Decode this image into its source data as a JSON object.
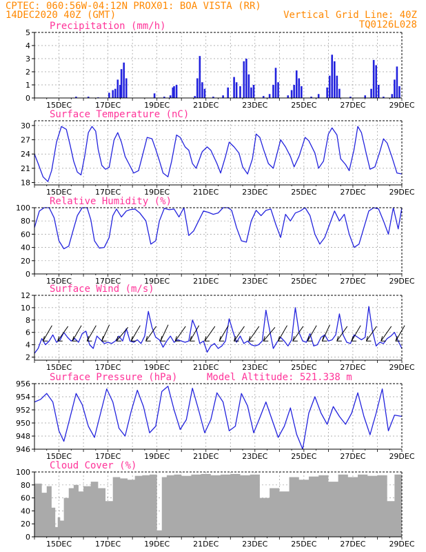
{
  "header": {
    "line1": "CPTEC:    060:56W-04:12N   PROX01: BOA VISTA (RR)",
    "line2_left": "14DEC2020 40Z (GMT)",
    "line2_right": "Vertical Grid Line: 40Z",
    "line3_right": "TQ0126L028"
  },
  "colors": {
    "header": "#ff8800",
    "title": "#ff3399",
    "line": "#2222dd",
    "cloud": "#aaaaaa",
    "grid": "#999999"
  },
  "x_ticks": [
    "15DEC",
    "17DEC",
    "19DEC",
    "21DEC",
    "23DEC",
    "25DEC",
    "27DEC",
    "29DEC"
  ],
  "x_tick_days": [
    1,
    3,
    5,
    7,
    9,
    11,
    13,
    15
  ],
  "chart_data": [
    {
      "id": "precip",
      "type": "bar",
      "title": "Precipitation  (mm/h)",
      "ylim": [
        0,
        5
      ],
      "yticks": [
        0,
        1,
        2,
        3,
        4,
        5
      ],
      "x_days": [
        1.7,
        2.2,
        2.6,
        3.05,
        3.2,
        3.3,
        3.4,
        3.5,
        3.55,
        3.65,
        3.75,
        4.9,
        5.3,
        5.55,
        5.65,
        5.7,
        5.8,
        6.55,
        6.65,
        6.75,
        6.85,
        6.95,
        7.3,
        7.7,
        7.9,
        8.15,
        8.25,
        8.4,
        8.55,
        8.65,
        8.75,
        8.85,
        8.95,
        9.35,
        9.6,
        9.75,
        9.85,
        9.95,
        10.35,
        10.5,
        10.6,
        10.7,
        10.8,
        10.9,
        11.3,
        11.6,
        11.95,
        12.05,
        12.15,
        12.25,
        12.35,
        12.45,
        12.9,
        13.5,
        13.75,
        13.85,
        13.95,
        14.05,
        14.25,
        14.6,
        14.7,
        14.8,
        14.9
      ],
      "values": [
        0.1,
        0.1,
        0.05,
        0.4,
        0.6,
        0.7,
        1.4,
        1.0,
        2.2,
        2.7,
        1.5,
        0.35,
        0.1,
        0.2,
        0.8,
        0.9,
        1.0,
        0.15,
        1.5,
        3.2,
        1.2,
        0.7,
        0.1,
        0.2,
        0.8,
        1.6,
        1.2,
        0.9,
        2.8,
        3.0,
        1.8,
        0.8,
        1.0,
        0.15,
        0.3,
        1.0,
        2.3,
        1.2,
        0.2,
        0.6,
        1.0,
        2.1,
        1.5,
        0.9,
        0.1,
        0.3,
        0.8,
        1.7,
        3.3,
        2.8,
        1.7,
        0.7,
        0.1,
        0.2,
        0.7,
        2.9,
        2.5,
        1.0,
        0.1,
        0.3,
        1.4,
        2.4,
        0.9
      ]
    },
    {
      "id": "temp",
      "type": "line",
      "title": "Surface Temperature (nC)",
      "ylim": [
        17.5,
        31
      ],
      "yticks": [
        18,
        21,
        24,
        27,
        30
      ],
      "x_days": [
        0,
        0.15,
        0.35,
        0.55,
        0.7,
        0.9,
        1.1,
        1.3,
        1.45,
        1.6,
        1.75,
        1.9,
        2.05,
        2.2,
        2.35,
        2.5,
        2.6,
        2.75,
        2.9,
        3.05,
        3.25,
        3.4,
        3.55,
        3.7,
        3.85,
        4.05,
        4.25,
        4.4,
        4.6,
        4.8,
        4.95,
        5.1,
        5.25,
        5.45,
        5.6,
        5.8,
        5.95,
        6.15,
        6.3,
        6.45,
        6.6,
        6.85,
        7.05,
        7.2,
        7.45,
        7.6,
        7.8,
        7.95,
        8.15,
        8.35,
        8.5,
        8.7,
        8.9,
        9.05,
        9.2,
        9.35,
        9.55,
        9.75,
        9.9,
        10.05,
        10.25,
        10.45,
        10.6,
        10.8,
        11.05,
        11.2,
        11.45,
        11.6,
        11.8,
        12.0,
        12.15,
        12.35,
        12.5,
        12.7,
        12.85,
        13.05,
        13.2,
        13.35,
        13.55,
        13.7,
        13.9,
        14.1,
        14.25,
        14.4,
        14.6,
        14.8,
        15.0
      ],
      "values": [
        24,
        22,
        19.2,
        18.2,
        20.5,
        26.5,
        29.8,
        29.2,
        26,
        22.5,
        20.2,
        19.6,
        23.5,
        28.5,
        29.8,
        28.8,
        25,
        21.6,
        20.8,
        21.2,
        27,
        28.5,
        26.5,
        23.5,
        22,
        20,
        20.5,
        23.5,
        27.5,
        27.2,
        25,
        22.6,
        20,
        19.2,
        22.5,
        28,
        27.5,
        25.5,
        24.8,
        22,
        21,
        24.5,
        25.5,
        24.8,
        22,
        20,
        23.5,
        26.5,
        25.5,
        24.2,
        21.3,
        19.8,
        23,
        28.2,
        27.5,
        25,
        22,
        21,
        24,
        27,
        25.5,
        23.5,
        21.3,
        23.5,
        27.5,
        26.8,
        24.2,
        21,
        22.5,
        28.2,
        29.5,
        28,
        23,
        21.8,
        20.5,
        25,
        29.8,
        28.5,
        24,
        20.8,
        21.3,
        24.5,
        27.2,
        26.3,
        23.3,
        20,
        19.8
      ]
    },
    {
      "id": "rh",
      "type": "line",
      "title": "Relative Humidity (%)",
      "ylim": [
        0,
        100
      ],
      "yticks": [
        0,
        20,
        40,
        60,
        80,
        100
      ],
      "x_days": [
        0,
        0.2,
        0.4,
        0.6,
        0.8,
        1.0,
        1.2,
        1.4,
        1.55,
        1.75,
        1.95,
        2.15,
        2.3,
        2.45,
        2.65,
        2.85,
        3.05,
        3.2,
        3.35,
        3.55,
        3.75,
        3.9,
        4.1,
        4.3,
        4.55,
        4.75,
        4.95,
        5.1,
        5.3,
        5.5,
        5.7,
        5.9,
        6.1,
        6.3,
        6.5,
        6.7,
        6.9,
        7.1,
        7.3,
        7.5,
        7.7,
        7.9,
        8.05,
        8.25,
        8.45,
        8.65,
        8.85,
        9.05,
        9.25,
        9.45,
        9.65,
        9.85,
        10.05,
        10.25,
        10.45,
        10.65,
        10.85,
        11.05,
        11.25,
        11.45,
        11.65,
        11.85,
        12.05,
        12.25,
        12.45,
        12.65,
        12.85,
        13.05,
        13.25,
        13.45,
        13.65,
        13.85,
        14.05,
        14.25,
        14.45,
        14.65,
        14.85,
        15.0
      ],
      "values": [
        70,
        95,
        100,
        100,
        85,
        50,
        38,
        42,
        62,
        88,
        100,
        100,
        82,
        50,
        39,
        40,
        55,
        88,
        98,
        86,
        95,
        97,
        98,
        92,
        80,
        45,
        50,
        80,
        99,
        97,
        98,
        86,
        100,
        58,
        65,
        80,
        95,
        93,
        90,
        92,
        100,
        100,
        96,
        70,
        50,
        48,
        80,
        96,
        88,
        96,
        98,
        75,
        55,
        90,
        80,
        92,
        95,
        100,
        88,
        60,
        45,
        55,
        75,
        95,
        80,
        90,
        60,
        40,
        45,
        70,
        95,
        100,
        98,
        80,
        60,
        100,
        68,
        100
      ]
    },
    {
      "id": "wind",
      "type": "line",
      "title": "Surface Wind (m/s)",
      "ylim": [
        1.5,
        12
      ],
      "yticks": [
        2,
        4,
        6,
        8,
        10,
        12
      ],
      "x_days": [
        0,
        0.15,
        0.3,
        0.45,
        0.6,
        0.75,
        0.9,
        1.05,
        1.2,
        1.35,
        1.5,
        1.65,
        1.8,
        1.95,
        2.1,
        2.25,
        2.4,
        2.55,
        2.7,
        2.85,
        3.0,
        3.15,
        3.3,
        3.45,
        3.6,
        3.75,
        3.9,
        4.05,
        4.2,
        4.35,
        4.5,
        4.65,
        4.8,
        4.95,
        5.1,
        5.25,
        5.4,
        5.55,
        5.7,
        5.85,
        6.0,
        6.15,
        6.3,
        6.45,
        6.6,
        6.75,
        6.9,
        7.05,
        7.2,
        7.35,
        7.5,
        7.65,
        7.8,
        7.95,
        8.1,
        8.25,
        8.4,
        8.55,
        8.7,
        8.85,
        9.0,
        9.15,
        9.3,
        9.45,
        9.6,
        9.75,
        9.9,
        10.05,
        10.2,
        10.35,
        10.5,
        10.65,
        10.8,
        10.95,
        11.1,
        11.25,
        11.4,
        11.55,
        11.7,
        11.85,
        12.0,
        12.15,
        12.3,
        12.45,
        12.6,
        12.75,
        12.9,
        13.05,
        13.2,
        13.35,
        13.5,
        13.65,
        13.8,
        13.95,
        14.1,
        14.25,
        14.4,
        14.55,
        14.7,
        14.85,
        15.0
      ],
      "values": [
        2.6,
        3.4,
        5.0,
        4.0,
        4.6,
        5.6,
        4.4,
        4.8,
        6.0,
        5.2,
        4.6,
        5.0,
        4.4,
        5.8,
        6.2,
        4.0,
        3.4,
        5.4,
        4.8,
        4.2,
        4.4,
        4.2,
        4.6,
        5.4,
        4.6,
        6.6,
        4.6,
        4.4,
        4.8,
        4.2,
        5.4,
        9.4,
        6.8,
        5.2,
        4.8,
        3.6,
        4.6,
        5.4,
        4.4,
        4.8,
        4.6,
        4.4,
        4.6,
        8.0,
        6.6,
        4.2,
        4.6,
        2.8,
        3.8,
        4.2,
        3.4,
        3.8,
        4.6,
        8.2,
        6.2,
        4.4,
        5.4,
        4.2,
        4.6,
        4.0,
        3.8,
        4.0,
        4.6,
        9.6,
        6.4,
        3.4,
        4.4,
        5.2,
        4.6,
        3.8,
        4.8,
        10.0,
        6.0,
        4.6,
        4.4,
        5.8,
        3.8,
        4.0,
        5.2,
        5.6,
        4.6,
        4.8,
        5.6,
        9.0,
        5.6,
        4.4,
        4.2,
        5.6,
        5.2,
        4.8,
        5.2,
        10.2,
        6.2,
        3.8,
        4.4,
        4.2,
        5.0,
        5.4,
        6.0,
        4.6,
        3.4
      ]
    },
    {
      "id": "pressure",
      "type": "line",
      "title": "Surface Pressure (hPa)",
      "annotation": "Model Altitude: 521.338  m",
      "ylim": [
        946,
        956
      ],
      "yticks": [
        946,
        948,
        950,
        952,
        954,
        956
      ],
      "x_days": [
        0,
        0.25,
        0.5,
        0.75,
        1.0,
        1.2,
        1.45,
        1.7,
        1.95,
        2.2,
        2.45,
        2.7,
        2.95,
        3.2,
        3.45,
        3.7,
        3.95,
        4.2,
        4.45,
        4.7,
        4.95,
        5.2,
        5.45,
        5.7,
        5.95,
        6.2,
        6.45,
        6.7,
        6.95,
        7.2,
        7.45,
        7.7,
        7.95,
        8.2,
        8.45,
        8.7,
        8.95,
        9.2,
        9.45,
        9.7,
        9.95,
        10.2,
        10.45,
        10.7,
        10.95,
        11.2,
        11.45,
        11.7,
        11.95,
        12.2,
        12.45,
        12.7,
        12.95,
        13.2,
        13.45,
        13.7,
        13.95,
        14.2,
        14.45,
        14.7,
        15.0
      ],
      "values": [
        953.2,
        953.6,
        954.5,
        953.2,
        948.8,
        947.2,
        950.8,
        954.5,
        952.8,
        949.5,
        947.8,
        951.5,
        955.2,
        953.2,
        949.2,
        948.0,
        951.8,
        955.0,
        952.5,
        948.5,
        949.5,
        954.8,
        955.6,
        952.0,
        949.0,
        950.5,
        955.3,
        952.0,
        948.5,
        950.5,
        954.6,
        953.2,
        948.8,
        949.5,
        954.5,
        952.6,
        948.5,
        950.8,
        953.2,
        950.5,
        947.8,
        949.5,
        952.3,
        948.3,
        946.0,
        951.5,
        954.0,
        951.5,
        949.8,
        952.5,
        951.0,
        949.8,
        951.5,
        954.6,
        951.0,
        948.2,
        951.5,
        955.2,
        948.8,
        951.2,
        951.0
      ]
    },
    {
      "id": "cloud",
      "type": "area",
      "title": "Cloud Cover (%)",
      "ylim": [
        0,
        100
      ],
      "yticks": [
        0,
        20,
        40,
        60,
        80,
        100
      ],
      "x_days": [
        0,
        0.3,
        0.5,
        0.7,
        0.85,
        0.95,
        1.05,
        1.2,
        1.4,
        1.6,
        1.8,
        2.0,
        2.3,
        2.6,
        2.9,
        3.2,
        3.5,
        3.8,
        4.1,
        4.4,
        4.7,
        5.0,
        5.2,
        5.4,
        5.7,
        6.0,
        6.4,
        6.8,
        7.2,
        7.6,
        8.0,
        8.4,
        8.8,
        9.2,
        9.6,
        10.0,
        10.4,
        10.8,
        11.2,
        11.6,
        12.0,
        12.4,
        12.8,
        13.2,
        13.6,
        14.0,
        14.4,
        14.7,
        15.0
      ],
      "values": [
        82,
        68,
        78,
        45,
        15,
        30,
        25,
        60,
        75,
        80,
        70,
        78,
        85,
        75,
        55,
        92,
        90,
        88,
        94,
        95,
        96,
        10,
        92,
        95,
        96,
        94,
        96,
        97,
        95,
        96,
        97,
        95,
        96,
        60,
        75,
        70,
        92,
        88,
        93,
        95,
        85,
        96,
        92,
        96,
        94,
        95,
        55,
        96,
        97
      ]
    }
  ],
  "wind_arrows": {
    "x_days": [
      0.35,
      0.95,
      1.55,
      2.15,
      2.75,
      3.35,
      3.95,
      4.55,
      5.15,
      5.75,
      6.35,
      6.95,
      7.55,
      8.15,
      8.75,
      9.35,
      9.95,
      10.55,
      11.15,
      11.75,
      12.35,
      12.95,
      13.55,
      14.15,
      14.75
    ],
    "dir_deg": [
      60,
      55,
      60,
      60,
      65,
      50,
      60,
      55,
      65,
      55,
      60,
      55,
      60,
      55,
      55,
      50,
      60,
      55,
      60,
      65,
      55,
      60,
      55,
      55,
      60
    ]
  }
}
